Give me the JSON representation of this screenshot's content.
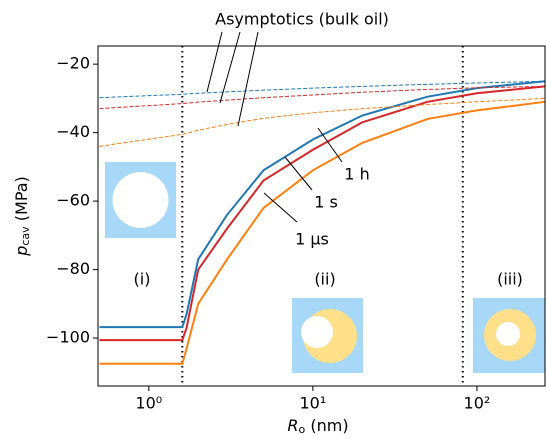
{
  "chart_data": {
    "type": "line",
    "log_x": true,
    "x": [
      0.5,
      1.6,
      1.7,
      2,
      3,
      5,
      10,
      20,
      50,
      100,
      260
    ],
    "series": [
      {
        "name": "1 h",
        "color": "#1f77b4",
        "style": "solid",
        "values": [
          -96.8,
          -96.8,
          -93,
          -77,
          -64,
          -51,
          -42,
          -35,
          -29.5,
          -27,
          -25
        ]
      },
      {
        "name": "1 s",
        "color": "#d62728",
        "style": "solid",
        "values": [
          -100.6,
          -100.6,
          -97,
          -80,
          -68,
          -54,
          -45,
          -37,
          -31,
          -28.5,
          -26.5
        ]
      },
      {
        "name": "1 μs",
        "color": "#ff7f0e",
        "style": "solid",
        "values": [
          -107.5,
          -107.5,
          -103,
          -90,
          -77,
          -62,
          -51,
          -43,
          -36,
          -33.5,
          -31
        ]
      },
      {
        "color": "#1f77b4",
        "style": "dashed",
        "values": [
          -29.8,
          -28.8,
          -28.7,
          -28.5,
          -28.1,
          -27.6,
          -27,
          -26.5,
          -25.9,
          -25.5,
          -25
        ]
      },
      {
        "color": "#d62728",
        "style": "dashed",
        "values": [
          -33,
          -31.5,
          -31.4,
          -31.1,
          -30.5,
          -29.8,
          -29,
          -28.2,
          -27.4,
          -26.9,
          -26.5
        ]
      },
      {
        "color": "#ff7f0e",
        "style": "dashed",
        "values": [
          -44,
          -40.5,
          -40.2,
          -39.3,
          -37.6,
          -35.8,
          -34.2,
          -33,
          -31.8,
          -31,
          -30
        ]
      }
    ],
    "xlim": [
      0.49,
      260
    ],
    "ylim": [
      -114,
      -14.7
    ],
    "xticks": [
      {
        "value": 1,
        "label": "10⁰"
      },
      {
        "value": 10,
        "label": "10¹"
      },
      {
        "value": 100,
        "label": "10²"
      }
    ],
    "yticks": [
      {
        "value": -20,
        "label": "−20"
      },
      {
        "value": -40,
        "label": "−40"
      },
      {
        "value": -60,
        "label": "−60"
      },
      {
        "value": -80,
        "label": "−80"
      },
      {
        "value": -100,
        "label": "−100"
      }
    ],
    "vlines": [
      1.6,
      82
    ],
    "x_label": [
      "R",
      "o",
      " (nm)"
    ],
    "y_label": [
      "p",
      "cav",
      " (MPa)"
    ],
    "annotations": {
      "asymptotics": "Asymptotics (bulk oil)",
      "region_1": "(i)",
      "region_2": "(ii)",
      "region_3": "(iii)"
    }
  }
}
